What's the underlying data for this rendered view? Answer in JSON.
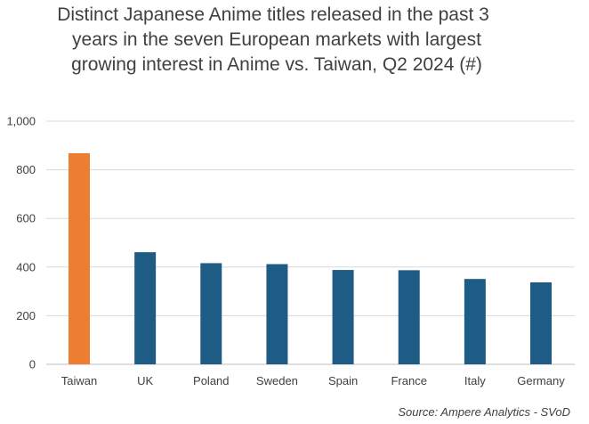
{
  "chart_data": {
    "type": "bar",
    "title_lines": [
      "Distinct Japanese Anime titles released in the past 3",
      "years in the seven European markets with largest",
      "growing interest in Anime vs. Taiwan, Q2 2024 (#)"
    ],
    "categories": [
      "Taiwan",
      "UK",
      "Poland",
      "Sweden",
      "Spain",
      "France",
      "Italy",
      "Germany"
    ],
    "values": [
      868,
      461,
      416,
      412,
      388,
      387,
      351,
      337
    ],
    "colors": [
      "#ED7D31",
      "#1F5C85",
      "#1F5C85",
      "#1F5C85",
      "#1F5C85",
      "#1F5C85",
      "#1F5C85",
      "#1F5C85"
    ],
    "ylim": [
      0,
      1000
    ],
    "yticks": [
      0,
      200,
      400,
      600,
      800,
      1000
    ],
    "ytick_labels": [
      "0",
      "200",
      "400",
      "600",
      "800",
      "1,000"
    ],
    "grid": true,
    "legend": "none",
    "source": "Source: Ampere Analytics - SVoD"
  }
}
